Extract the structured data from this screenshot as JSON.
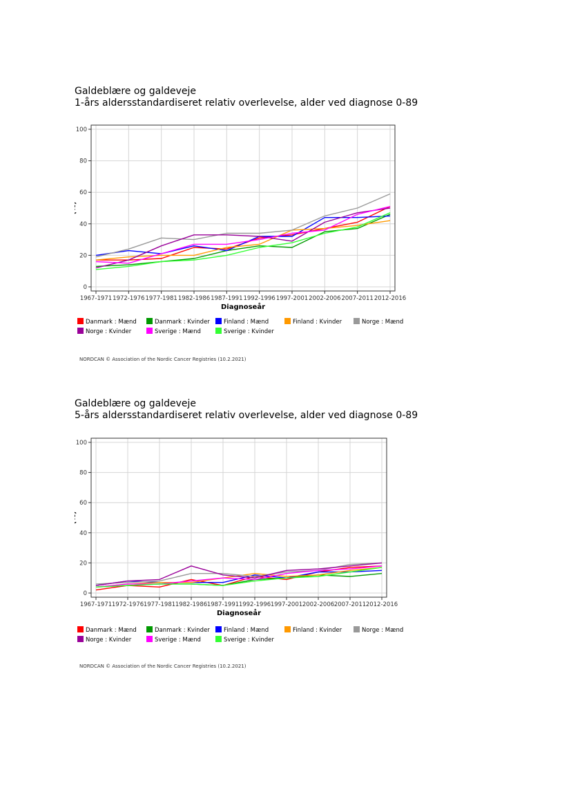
{
  "chart_data": [
    {
      "type": "line",
      "title": "Galdeblære og galdeveje",
      "subtitle": "1-års aldersstandardiseret relativ overlevelse, alder ved diagnose 0-89",
      "xlabel": "Diagnoseår",
      "ylabel": "(%)",
      "ylim": [
        0,
        100
      ],
      "yticks": [
        0,
        20,
        40,
        60,
        80,
        100
      ],
      "categories": [
        "1967-1971",
        "1972-1976",
        "1977-1981",
        "1982-1986",
        "1987-1991",
        "1992-1996",
        "1997-2001",
        "2002-2006",
        "2007-2011",
        "2012-2016"
      ],
      "grid": true,
      "legend_position": "bottom",
      "series": [
        {
          "name": "Danmark : Mænd",
          "color": "#ff0000",
          "values": [
            17,
            17,
            18,
            25,
            24,
            31,
            33,
            37,
            41,
            51
          ]
        },
        {
          "name": "Danmark : Kvinder",
          "color": "#009900",
          "values": [
            13,
            14,
            16,
            18,
            23,
            26,
            25,
            35,
            37,
            46
          ]
        },
        {
          "name": "Finland : Mænd",
          "color": "#0000ff",
          "values": [
            20,
            23,
            21,
            26,
            23,
            32,
            32,
            44,
            44,
            45
          ]
        },
        {
          "name": "Finland : Kvinder",
          "color": "#ff9900",
          "values": [
            17,
            19,
            20,
            20,
            25,
            27,
            36,
            37,
            39,
            42
          ]
        },
        {
          "name": "Norge : Mænd",
          "color": "#999999",
          "values": [
            19,
            24,
            31,
            30,
            34,
            34,
            36,
            45,
            50,
            59
          ]
        },
        {
          "name": "Norge : Kvinder",
          "color": "#990099",
          "values": [
            12,
            17,
            26,
            33,
            33,
            32,
            29,
            41,
            47,
            50
          ]
        },
        {
          "name": "Sverige : Mænd",
          "color": "#ff00ff",
          "values": [
            16,
            15,
            21,
            27,
            27,
            30,
            34,
            36,
            46,
            51
          ]
        },
        {
          "name": "Sverige : Kvinder",
          "color": "#33ff33",
          "values": [
            11,
            13,
            16,
            17,
            20,
            25,
            28,
            34,
            38,
            47
          ]
        }
      ]
    },
    {
      "type": "line",
      "title": "Galdeblære og galdeveje",
      "subtitle": "5-års aldersstandardiseret relativ overlevelse, alder ved diagnose 0-89",
      "xlabel": "Diagnoseår",
      "ylabel": "(%)",
      "ylim": [
        0,
        100
      ],
      "yticks": [
        0,
        20,
        40,
        60,
        80,
        100
      ],
      "categories": [
        "1967-1971",
        "1972-1976",
        "1977-1981",
        "1982-1986",
        "1987-1991",
        "1992-1996",
        "1997-2001",
        "2002-2006",
        "2007-2011",
        "2012-2016"
      ],
      "grid": true,
      "legend_position": "bottom",
      "series": [
        {
          "name": "Danmark : Mænd",
          "color": "#ff0000",
          "values": [
            2,
            5,
            4,
            9,
            5,
            11,
            9,
            14,
            17,
            18
          ]
        },
        {
          "name": "Danmark : Kvinder",
          "color": "#009900",
          "values": [
            4,
            5,
            6,
            6,
            5,
            9,
            10,
            12,
            11,
            13
          ]
        },
        {
          "name": "Finland : Mænd",
          "color": "#0000ff",
          "values": [
            5,
            8,
            7,
            7,
            7,
            12,
            10,
            14,
            14,
            15
          ]
        },
        {
          "name": "Finland : Kvinder",
          "color": "#ff9900",
          "values": [
            4,
            6,
            7,
            7,
            10,
            13,
            11,
            12,
            15,
            17
          ]
        },
        {
          "name": "Norge : Mænd",
          "color": "#999999",
          "values": [
            6,
            7,
            8,
            13,
            13,
            11,
            14,
            15,
            19,
            20
          ]
        },
        {
          "name": "Norge : Kvinder",
          "color": "#990099",
          "values": [
            5,
            8,
            9,
            18,
            12,
            10,
            15,
            16,
            18,
            20
          ]
        },
        {
          "name": "Sverige : Mænd",
          "color": "#ff00ff",
          "values": [
            4,
            6,
            6,
            8,
            10,
            9,
            13,
            15,
            16,
            18
          ]
        },
        {
          "name": "Sverige : Kvinder",
          "color": "#33ff33",
          "values": [
            4,
            5,
            6,
            6,
            5,
            8,
            10,
            11,
            14,
            17
          ]
        }
      ]
    }
  ],
  "footer": "NORDCAN © Association of the Nordic Cancer Registries (10.2.2021)"
}
